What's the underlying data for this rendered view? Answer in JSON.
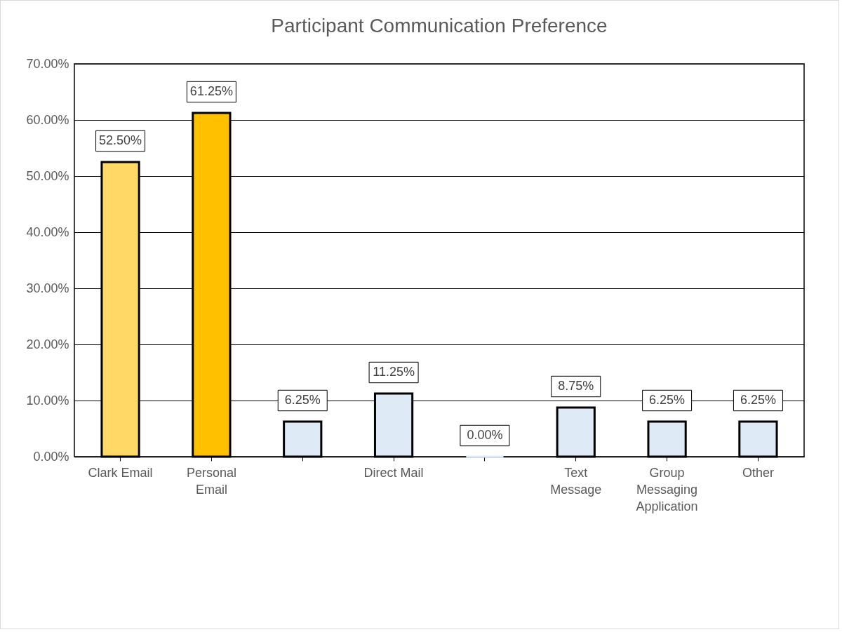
{
  "chart_data": {
    "type": "bar",
    "title": "Participant Communication Preference",
    "categories": [
      "Clark Email",
      "Personal Email",
      null,
      "Direct Mail",
      null,
      "Text Message",
      "Group Messaging Application",
      "Other"
    ],
    "values": [
      52.5,
      61.25,
      6.25,
      11.25,
      0,
      8.75,
      6.25,
      6.25
    ],
    "colors": [
      "#ffd966",
      "#ffc000",
      "#deebf7",
      "#deebf7",
      "#deebf7",
      "#deebf7",
      "#deebf7",
      "#deebf7"
    ],
    "value_labels": [
      "52.50%",
      "61.25%",
      "6.25%",
      "11.25%",
      "0.00%",
      "8.75%",
      "6.25%",
      "6.25%"
    ],
    "ylim": [
      0,
      70
    ],
    "yticks": [
      {
        "value": 0,
        "label": "0.00%"
      },
      {
        "value": 10,
        "label": "10.00%"
      },
      {
        "value": 20,
        "label": "20.00%"
      },
      {
        "value": 30,
        "label": "30.00%"
      },
      {
        "value": 40,
        "label": "40.00%"
      },
      {
        "value": 50,
        "label": "50.00%"
      },
      {
        "value": 60,
        "label": "60.00%"
      },
      {
        "value": 70,
        "label": "70.00%"
      }
    ],
    "grid": "y",
    "legend": false
  }
}
